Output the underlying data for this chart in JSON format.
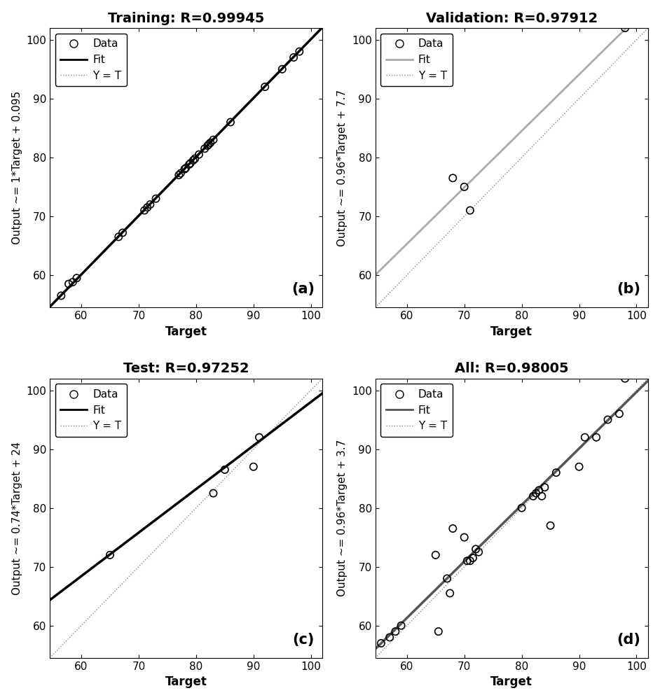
{
  "panels": [
    {
      "title": "Training: R=0.99945",
      "ylabel": "Output ~= 1*Target + 0.095",
      "xlabel": "Target",
      "label": "(a)",
      "fit_slope": 1.0,
      "fit_intercept": 0.095,
      "fit_color": "#000000",
      "fit_linewidth": 2.5,
      "xlim": [
        54.5,
        102
      ],
      "ylim": [
        54.5,
        102
      ],
      "xticks": [
        60,
        70,
        80,
        90,
        100
      ],
      "yticks": [
        60,
        70,
        80,
        90,
        100
      ],
      "data_x": [
        56.5,
        57.8,
        58.5,
        59.2,
        66.5,
        67.2,
        71.0,
        71.5,
        72.0,
        73.0,
        77.0,
        77.3,
        78.0,
        78.2,
        78.8,
        79.0,
        79.5,
        79.8,
        80.5,
        81.5,
        82.0,
        82.2,
        82.5,
        83.0,
        86.0,
        92.0,
        95.0,
        97.0,
        98.0
      ],
      "data_y": [
        56.5,
        58.5,
        58.8,
        59.5,
        66.5,
        67.2,
        71.0,
        71.5,
        72.0,
        73.0,
        77.0,
        77.3,
        78.0,
        78.2,
        78.8,
        79.0,
        79.5,
        79.8,
        80.5,
        81.5,
        82.0,
        82.2,
        82.5,
        83.0,
        86.0,
        92.0,
        95.0,
        97.0,
        98.0
      ]
    },
    {
      "title": "Validation: R=0.97912",
      "ylabel": "Output ~= 0.96*Target + 7.7",
      "xlabel": "Target",
      "label": "(b)",
      "fit_slope": 0.96,
      "fit_intercept": 7.7,
      "fit_color": "#aaaaaa",
      "fit_linewidth": 2.0,
      "xlim": [
        54.5,
        102
      ],
      "ylim": [
        54.5,
        102
      ],
      "xticks": [
        60,
        70,
        80,
        90,
        100
      ],
      "yticks": [
        60,
        70,
        80,
        90,
        100
      ],
      "data_x": [
        68.0,
        70.0,
        71.0,
        98.0
      ],
      "data_y": [
        76.5,
        75.0,
        71.0,
        102.0
      ]
    },
    {
      "title": "Test: R=0.97252",
      "ylabel": "Output ~= 0.74*Target + 24",
      "xlabel": "Target",
      "label": "(c)",
      "fit_slope": 0.74,
      "fit_intercept": 24,
      "fit_color": "#000000",
      "fit_linewidth": 2.5,
      "xlim": [
        54.5,
        102
      ],
      "ylim": [
        54.5,
        102
      ],
      "xticks": [
        60,
        70,
        80,
        90,
        100
      ],
      "yticks": [
        60,
        70,
        80,
        90,
        100
      ],
      "data_x": [
        65.0,
        83.0,
        85.0,
        90.0,
        91.0
      ],
      "data_y": [
        72.0,
        82.5,
        86.5,
        87.0,
        92.0
      ]
    },
    {
      "title": "All: R=0.98005",
      "ylabel": "Output ~= 0.96*Target + 3.7",
      "xlabel": "Target",
      "label": "(d)",
      "fit_slope": 0.96,
      "fit_intercept": 3.7,
      "fit_color": "#555555",
      "fit_linewidth": 2.5,
      "xlim": [
        54.5,
        102
      ],
      "ylim": [
        54.5,
        102
      ],
      "xticks": [
        60,
        70,
        80,
        90,
        100
      ],
      "yticks": [
        60,
        70,
        80,
        90,
        100
      ],
      "data_x": [
        55.5,
        57.0,
        58.0,
        59.0,
        65.0,
        67.0,
        68.0,
        70.0,
        71.0,
        72.0,
        65.5,
        67.5,
        70.5,
        71.5,
        72.5,
        80.0,
        82.0,
        82.5,
        83.0,
        83.5,
        84.0,
        85.0,
        86.0,
        90.0,
        91.0,
        93.0,
        95.0,
        97.0,
        98.0
      ],
      "data_y": [
        57.0,
        58.0,
        59.0,
        60.0,
        72.0,
        68.0,
        76.5,
        75.0,
        71.0,
        73.0,
        59.0,
        65.5,
        71.0,
        71.5,
        72.5,
        80.0,
        82.0,
        82.5,
        83.0,
        82.0,
        83.5,
        77.0,
        86.0,
        87.0,
        92.0,
        92.0,
        95.0,
        96.0,
        102.0
      ]
    }
  ],
  "background_color": "#ffffff",
  "title_fontsize": 14,
  "label_fontsize": 12,
  "tick_fontsize": 11,
  "legend_fontsize": 11,
  "panel_label_fontsize": 15
}
